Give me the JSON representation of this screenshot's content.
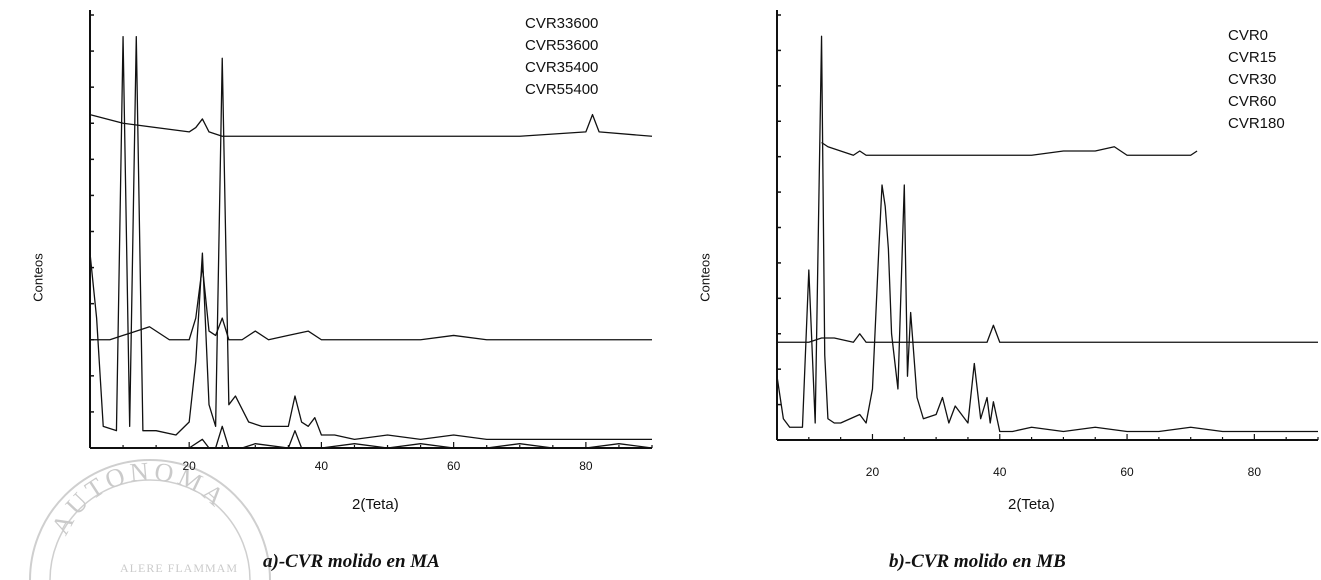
{
  "chart_data": [
    {
      "type": "line",
      "caption": "a)-CVR molido en MA",
      "xlabel": "2(Teta)",
      "ylabel": "Conteos",
      "xlim": [
        5,
        90
      ],
      "xticks": [
        20,
        40,
        60,
        80
      ],
      "legend_position": "top-right",
      "series": [
        {
          "name": "CVR33600",
          "x": [
            5,
            6,
            7,
            9,
            10,
            11,
            12,
            13,
            15,
            18,
            20,
            21,
            22,
            23,
            24,
            25,
            26,
            27,
            29,
            31,
            33,
            35,
            36,
            37,
            38,
            39,
            40,
            42,
            45,
            50,
            55,
            60,
            65,
            70,
            75,
            80,
            85,
            90
          ],
          "y": [
            0.45,
            0.3,
            0.05,
            0.04,
            0.95,
            0.05,
            0.95,
            0.04,
            0.04,
            0.03,
            0.06,
            0.2,
            0.45,
            0.1,
            0.05,
            0.9,
            0.1,
            0.12,
            0.06,
            0.05,
            0.05,
            0.05,
            0.12,
            0.06,
            0.05,
            0.07,
            0.03,
            0.03,
            0.02,
            0.03,
            0.02,
            0.03,
            0.02,
            0.02,
            0.02,
            0.02,
            0.02,
            0.02
          ]
        },
        {
          "name": "CVR53600",
          "x": [
            5,
            8,
            10,
            12,
            14,
            17,
            20,
            21,
            22,
            23,
            24,
            25,
            26,
            28,
            30,
            32,
            35,
            38,
            40,
            45,
            50,
            55,
            60,
            65,
            70,
            75,
            80,
            85,
            90
          ],
          "y": [
            0.25,
            0.25,
            0.26,
            0.27,
            0.28,
            0.25,
            0.25,
            0.3,
            0.42,
            0.27,
            0.26,
            0.3,
            0.25,
            0.25,
            0.27,
            0.25,
            0.26,
            0.27,
            0.25,
            0.25,
            0.25,
            0.25,
            0.26,
            0.25,
            0.25,
            0.25,
            0.25,
            0.25,
            0.25
          ]
        },
        {
          "name": "CVR35400",
          "x": [
            5,
            10,
            15,
            20,
            22,
            23,
            24,
            25,
            26,
            28,
            30,
            35,
            36,
            37,
            40,
            45,
            50,
            55,
            60,
            65,
            70,
            75,
            80,
            85,
            90
          ],
          "y": [
            0.0,
            0.0,
            0.0,
            0.0,
            0.02,
            0.0,
            0.0,
            0.05,
            0.0,
            0.0,
            0.01,
            0.0,
            0.04,
            0.0,
            0.0,
            0.01,
            0.0,
            0.01,
            0.0,
            0.0,
            0.01,
            0.0,
            0.0,
            0.01,
            0.0
          ]
        },
        {
          "name": "CVR55400",
          "x": [
            5,
            10,
            20,
            21,
            22,
            23,
            25,
            30,
            35,
            40,
            50,
            60,
            70,
            80,
            81,
            82,
            90
          ],
          "y": [
            0.77,
            0.75,
            0.73,
            0.74,
            0.76,
            0.73,
            0.72,
            0.72,
            0.72,
            0.72,
            0.72,
            0.72,
            0.72,
            0.73,
            0.77,
            0.73,
            0.72
          ]
        }
      ]
    },
    {
      "type": "line",
      "caption": "b)-CVR molido en MB",
      "xlabel": "2(Teta)",
      "ylabel": "Conteos",
      "xlim": [
        5,
        90
      ],
      "xticks": [
        20,
        40,
        60,
        80
      ],
      "legend_position": "top-right",
      "series": [
        {
          "name": "CVR0",
          "x": [
            5,
            6,
            7,
            8,
            9,
            10,
            11,
            12,
            12.5,
            13,
            14,
            15,
            18,
            19,
            20,
            21,
            21.5,
            22,
            22.5,
            23,
            24,
            25,
            25.5,
            26,
            27,
            28,
            30,
            31,
            32,
            33,
            35,
            36,
            37,
            38,
            38.5,
            39,
            40,
            42,
            45,
            50,
            55,
            60,
            65,
            70,
            75,
            80,
            85,
            90
          ],
          "y": [
            0.15,
            0.05,
            0.03,
            0.03,
            0.03,
            0.4,
            0.04,
            0.95,
            0.2,
            0.05,
            0.04,
            0.04,
            0.06,
            0.04,
            0.12,
            0.45,
            0.6,
            0.55,
            0.45,
            0.25,
            0.12,
            0.6,
            0.15,
            0.3,
            0.1,
            0.05,
            0.06,
            0.1,
            0.04,
            0.08,
            0.04,
            0.18,
            0.05,
            0.1,
            0.04,
            0.09,
            0.02,
            0.02,
            0.03,
            0.02,
            0.03,
            0.02,
            0.02,
            0.03,
            0.02,
            0.02,
            0.02,
            0.02
          ]
        },
        {
          "name": "CVR15",
          "x": [
            5,
            8,
            10,
            12,
            14,
            17,
            18,
            19,
            20,
            25,
            30,
            35,
            37,
            38,
            39,
            40,
            45,
            50,
            55,
            60,
            65,
            70,
            75,
            80,
            85,
            90
          ],
          "y": [
            0.23,
            0.23,
            0.23,
            0.24,
            0.24,
            0.23,
            0.25,
            0.23,
            0.23,
            0.23,
            0.23,
            0.23,
            0.23,
            0.23,
            0.27,
            0.23,
            0.23,
            0.23,
            0.23,
            0.23,
            0.23,
            0.23,
            0.23,
            0.23,
            0.23,
            0.23
          ]
        },
        {
          "name": "CVR30",
          "x": [
            5,
            10,
            15,
            20,
            25,
            30,
            35,
            40,
            45,
            50,
            55,
            60,
            65,
            70,
            75,
            80,
            85,
            90
          ],
          "y": [
            0.0,
            0.0,
            0.0,
            0.0,
            0.0,
            0.0,
            0.0,
            0.0,
            0.0,
            0.0,
            0.0,
            0.0,
            0.0,
            0.0,
            0.0,
            0.0,
            0.0,
            0.0
          ]
        },
        {
          "name": "CVR60",
          "x": [
            5,
            10,
            15,
            20,
            25,
            30,
            35,
            40,
            45,
            50,
            55,
            60,
            65,
            70,
            75,
            80,
            85,
            90
          ],
          "y": [
            0.0,
            0.0,
            0.0,
            0.0,
            0.0,
            0.0,
            0.0,
            0.0,
            0.0,
            0.0,
            0.0,
            0.0,
            0.0,
            0.0,
            0.0,
            0.0,
            0.0,
            0.0
          ]
        },
        {
          "name": "CVR180",
          "x": [
            12,
            13,
            15,
            17,
            18,
            19,
            38,
            40,
            45,
            50,
            55,
            58,
            60,
            70,
            71
          ],
          "y": [
            0.7,
            0.69,
            0.68,
            0.67,
            0.68,
            0.67,
            0.67,
            0.67,
            0.67,
            0.68,
            0.68,
            0.69,
            0.67,
            0.67,
            0.68
          ]
        }
      ]
    }
  ],
  "watermark": {
    "top_text": "AUTONOMA",
    "inner_text": "ALERE FLAMMAM"
  }
}
